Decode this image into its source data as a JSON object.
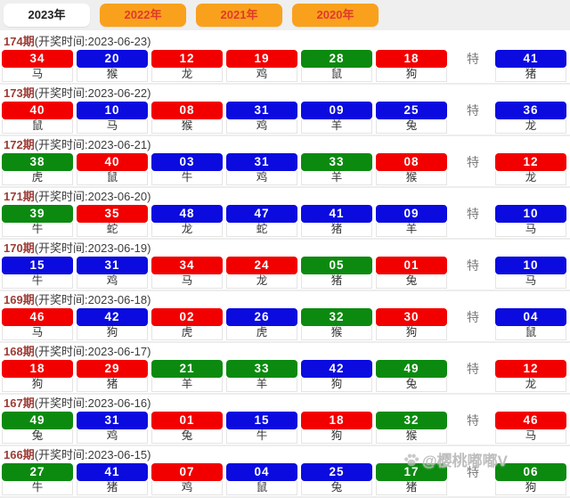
{
  "tabs": [
    {
      "label": "2023年",
      "active": true
    },
    {
      "label": "2022年",
      "active": false
    },
    {
      "label": "2021年",
      "active": false
    },
    {
      "label": "2020年",
      "active": false
    }
  ],
  "special_label": "特",
  "watermark": {
    "icon": "paw-icon",
    "handle": "@樱桃嘟嘟V"
  },
  "colors": {
    "red": "#f20000",
    "blue": "#0b0be0",
    "green": "#0c8a10",
    "tab_orange": "#f9a11c",
    "tab_text_red": "#e03a2d"
  },
  "draws": [
    {
      "period": "174期",
      "time_label": "(开奖时间:2023-06-23)",
      "numbers": [
        {
          "value": "34",
          "color": "red",
          "zodiac": "马"
        },
        {
          "value": "20",
          "color": "blue",
          "zodiac": "猴"
        },
        {
          "value": "12",
          "color": "red",
          "zodiac": "龙"
        },
        {
          "value": "19",
          "color": "red",
          "zodiac": "鸡"
        },
        {
          "value": "28",
          "color": "green",
          "zodiac": "鼠"
        },
        {
          "value": "18",
          "color": "red",
          "zodiac": "狗"
        }
      ],
      "special": {
        "value": "41",
        "color": "blue",
        "zodiac": "猪"
      }
    },
    {
      "period": "173期",
      "time_label": "(开奖时间:2023-06-22)",
      "numbers": [
        {
          "value": "40",
          "color": "red",
          "zodiac": "鼠"
        },
        {
          "value": "10",
          "color": "blue",
          "zodiac": "马"
        },
        {
          "value": "08",
          "color": "red",
          "zodiac": "猴"
        },
        {
          "value": "31",
          "color": "blue",
          "zodiac": "鸡"
        },
        {
          "value": "09",
          "color": "blue",
          "zodiac": "羊"
        },
        {
          "value": "25",
          "color": "blue",
          "zodiac": "兔"
        }
      ],
      "special": {
        "value": "36",
        "color": "blue",
        "zodiac": "龙"
      }
    },
    {
      "period": "172期",
      "time_label": "(开奖时间:2023-06-21)",
      "numbers": [
        {
          "value": "38",
          "color": "green",
          "zodiac": "虎"
        },
        {
          "value": "40",
          "color": "red",
          "zodiac": "鼠"
        },
        {
          "value": "03",
          "color": "blue",
          "zodiac": "牛"
        },
        {
          "value": "31",
          "color": "blue",
          "zodiac": "鸡"
        },
        {
          "value": "33",
          "color": "green",
          "zodiac": "羊"
        },
        {
          "value": "08",
          "color": "red",
          "zodiac": "猴"
        }
      ],
      "special": {
        "value": "12",
        "color": "red",
        "zodiac": "龙"
      }
    },
    {
      "period": "171期",
      "time_label": "(开奖时间:2023-06-20)",
      "numbers": [
        {
          "value": "39",
          "color": "green",
          "zodiac": "牛"
        },
        {
          "value": "35",
          "color": "red",
          "zodiac": "蛇"
        },
        {
          "value": "48",
          "color": "blue",
          "zodiac": "龙"
        },
        {
          "value": "47",
          "color": "blue",
          "zodiac": "蛇"
        },
        {
          "value": "41",
          "color": "blue",
          "zodiac": "猪"
        },
        {
          "value": "09",
          "color": "blue",
          "zodiac": "羊"
        }
      ],
      "special": {
        "value": "10",
        "color": "blue",
        "zodiac": "马"
      }
    },
    {
      "period": "170期",
      "time_label": "(开奖时间:2023-06-19)",
      "numbers": [
        {
          "value": "15",
          "color": "blue",
          "zodiac": "牛"
        },
        {
          "value": "31",
          "color": "blue",
          "zodiac": "鸡"
        },
        {
          "value": "34",
          "color": "red",
          "zodiac": "马"
        },
        {
          "value": "24",
          "color": "red",
          "zodiac": "龙"
        },
        {
          "value": "05",
          "color": "green",
          "zodiac": "猪"
        },
        {
          "value": "01",
          "color": "red",
          "zodiac": "兔"
        }
      ],
      "special": {
        "value": "10",
        "color": "blue",
        "zodiac": "马"
      }
    },
    {
      "period": "169期",
      "time_label": "(开奖时间:2023-06-18)",
      "numbers": [
        {
          "value": "46",
          "color": "red",
          "zodiac": "马"
        },
        {
          "value": "42",
          "color": "blue",
          "zodiac": "狗"
        },
        {
          "value": "02",
          "color": "red",
          "zodiac": "虎"
        },
        {
          "value": "26",
          "color": "blue",
          "zodiac": "虎"
        },
        {
          "value": "32",
          "color": "green",
          "zodiac": "猴"
        },
        {
          "value": "30",
          "color": "red",
          "zodiac": "狗"
        }
      ],
      "special": {
        "value": "04",
        "color": "blue",
        "zodiac": "鼠"
      }
    },
    {
      "period": "168期",
      "time_label": "(开奖时间:2023-06-17)",
      "numbers": [
        {
          "value": "18",
          "color": "red",
          "zodiac": "狗"
        },
        {
          "value": "29",
          "color": "red",
          "zodiac": "猪"
        },
        {
          "value": "21",
          "color": "green",
          "zodiac": "羊"
        },
        {
          "value": "33",
          "color": "green",
          "zodiac": "羊"
        },
        {
          "value": "42",
          "color": "blue",
          "zodiac": "狗"
        },
        {
          "value": "49",
          "color": "green",
          "zodiac": "兔"
        }
      ],
      "special": {
        "value": "12",
        "color": "red",
        "zodiac": "龙"
      }
    },
    {
      "period": "167期",
      "time_label": "(开奖时间:2023-06-16)",
      "numbers": [
        {
          "value": "49",
          "color": "green",
          "zodiac": "兔"
        },
        {
          "value": "31",
          "color": "blue",
          "zodiac": "鸡"
        },
        {
          "value": "01",
          "color": "red",
          "zodiac": "兔"
        },
        {
          "value": "15",
          "color": "blue",
          "zodiac": "牛"
        },
        {
          "value": "18",
          "color": "red",
          "zodiac": "狗"
        },
        {
          "value": "32",
          "color": "green",
          "zodiac": "猴"
        }
      ],
      "special": {
        "value": "46",
        "color": "red",
        "zodiac": "马"
      }
    },
    {
      "period": "166期",
      "time_label": "(开奖时间:2023-06-15)",
      "numbers": [
        {
          "value": "27",
          "color": "green",
          "zodiac": "牛"
        },
        {
          "value": "41",
          "color": "blue",
          "zodiac": "猪"
        },
        {
          "value": "07",
          "color": "red",
          "zodiac": "鸡"
        },
        {
          "value": "04",
          "color": "blue",
          "zodiac": "鼠"
        },
        {
          "value": "25",
          "color": "blue",
          "zodiac": "兔"
        },
        {
          "value": "17",
          "color": "green",
          "zodiac": "猪"
        }
      ],
      "special": {
        "value": "06",
        "color": "green",
        "zodiac": "狗"
      }
    }
  ]
}
